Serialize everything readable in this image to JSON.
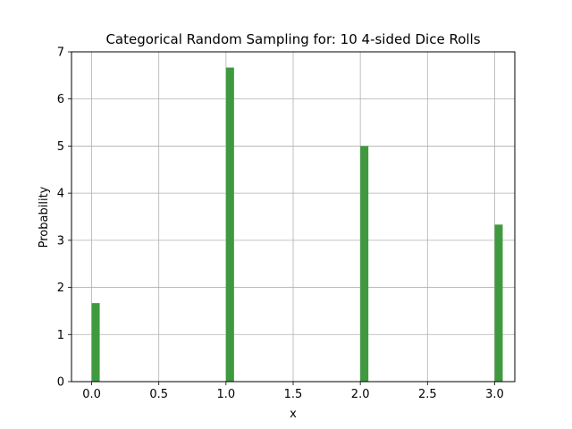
{
  "chart_data": {
    "type": "bar",
    "title": "Categorical Random Sampling for: 10 4-sided Dice Rolls",
    "xlabel": "x",
    "ylabel": "Probability",
    "x": [
      0.0,
      1.0,
      2.0,
      3.0
    ],
    "values": [
      1.667,
      6.667,
      5.0,
      3.333
    ],
    "bar_width": 0.06,
    "xlim": [
      -0.15,
      3.15
    ],
    "ylim": [
      0,
      7
    ],
    "xticks": [
      0.0,
      0.5,
      1.0,
      1.5,
      2.0,
      2.5,
      3.0
    ],
    "xtick_labels": [
      "0.0",
      "0.5",
      "1.0",
      "1.5",
      "2.0",
      "2.5",
      "3.0"
    ],
    "yticks": [
      0,
      1,
      2,
      3,
      4,
      5,
      6,
      7
    ],
    "ytick_labels": [
      "0",
      "1",
      "2",
      "3",
      "4",
      "5",
      "6",
      "7"
    ],
    "grid": true,
    "bar_color": "#3f9a3f",
    "grid_color": "#b0b0b0"
  }
}
